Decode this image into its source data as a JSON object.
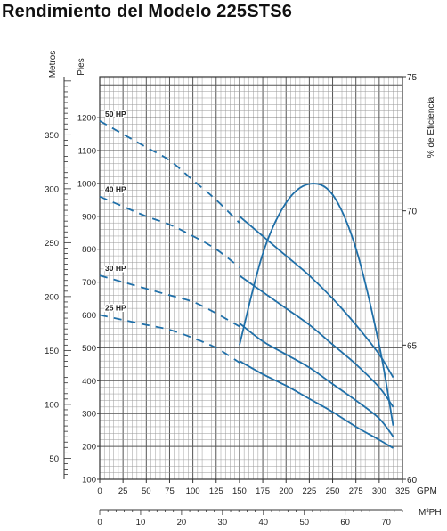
{
  "title": "Rendimiento del Modelo 225STS6",
  "colors": {
    "curve": "#1f6fa8",
    "grid": "#555555",
    "minor_grid": "#9a9a9a",
    "text": "#222222"
  },
  "chart_data": {
    "type": "line",
    "title": "Rendimiento del Modelo 225STS6",
    "x_primary": {
      "label": "GPM",
      "range": [
        0,
        325
      ],
      "ticks": [
        0,
        25,
        50,
        75,
        100,
        125,
        150,
        175,
        200,
        225,
        250,
        275,
        300,
        325
      ]
    },
    "x_secondary": {
      "label": "M³PH",
      "range": [
        0,
        74
      ],
      "ticks": [
        0,
        10,
        20,
        30,
        40,
        50,
        60,
        70
      ]
    },
    "y_primary": {
      "label": "Pies",
      "range": [
        100,
        1325
      ],
      "ticks": [
        100,
        200,
        300,
        400,
        500,
        600,
        700,
        800,
        900,
        1000,
        1100,
        1200
      ]
    },
    "y_secondary": {
      "label": "Metros",
      "range": [
        30.5,
        404
      ],
      "ticks": [
        50,
        100,
        150,
        200,
        250,
        300,
        350
      ]
    },
    "y_efficiency": {
      "label": "% de Eficiencia",
      "range": [
        60,
        75
      ],
      "ticks": [
        60,
        65,
        70,
        75
      ]
    },
    "grid": true,
    "series": [
      {
        "name": "50 HP",
        "dashed": [
          [
            0,
            1190
          ],
          [
            25,
            1150
          ],
          [
            50,
            1110
          ],
          [
            75,
            1070
          ],
          [
            100,
            1010
          ],
          [
            125,
            950
          ],
          [
            150,
            880
          ]
        ],
        "solid": [
          [
            150,
            900
          ],
          [
            175,
            840
          ],
          [
            200,
            780
          ],
          [
            225,
            720
          ],
          [
            250,
            650
          ],
          [
            275,
            570
          ],
          [
            300,
            480
          ],
          [
            315,
            410
          ]
        ]
      },
      {
        "name": "40 HP",
        "dashed": [
          [
            0,
            960
          ],
          [
            25,
            930
          ],
          [
            50,
            900
          ],
          [
            75,
            875
          ],
          [
            100,
            840
          ],
          [
            125,
            800
          ],
          [
            150,
            745
          ]
        ],
        "solid": [
          [
            150,
            720
          ],
          [
            175,
            670
          ],
          [
            200,
            620
          ],
          [
            225,
            570
          ],
          [
            250,
            510
          ],
          [
            275,
            450
          ],
          [
            300,
            380
          ],
          [
            315,
            320
          ]
        ]
      },
      {
        "name": "30 HP",
        "dashed": [
          [
            0,
            720
          ],
          [
            25,
            700
          ],
          [
            50,
            680
          ],
          [
            75,
            660
          ],
          [
            100,
            640
          ],
          [
            125,
            605
          ],
          [
            150,
            565
          ]
        ],
        "solid": [
          [
            150,
            575
          ],
          [
            175,
            520
          ],
          [
            200,
            480
          ],
          [
            225,
            440
          ],
          [
            250,
            390
          ],
          [
            275,
            340
          ],
          [
            300,
            285
          ],
          [
            315,
            230
          ]
        ]
      },
      {
        "name": "25 HP",
        "dashed": [
          [
            0,
            600
          ],
          [
            25,
            585
          ],
          [
            50,
            570
          ],
          [
            75,
            555
          ],
          [
            100,
            530
          ],
          [
            125,
            500
          ],
          [
            150,
            455
          ]
        ],
        "solid": [
          [
            150,
            460
          ],
          [
            175,
            420
          ],
          [
            200,
            385
          ],
          [
            225,
            345
          ],
          [
            250,
            305
          ],
          [
            275,
            260
          ],
          [
            300,
            220
          ],
          [
            315,
            195
          ]
        ]
      },
      {
        "name": "% de Eficiencia",
        "axis": "efficiency",
        "points": [
          [
            150,
            65.0
          ],
          [
            175,
            68.4
          ],
          [
            200,
            70.3
          ],
          [
            225,
            71.0
          ],
          [
            250,
            70.6
          ],
          [
            275,
            68.6
          ],
          [
            300,
            65.0
          ],
          [
            315,
            62.0
          ]
        ]
      }
    ]
  }
}
